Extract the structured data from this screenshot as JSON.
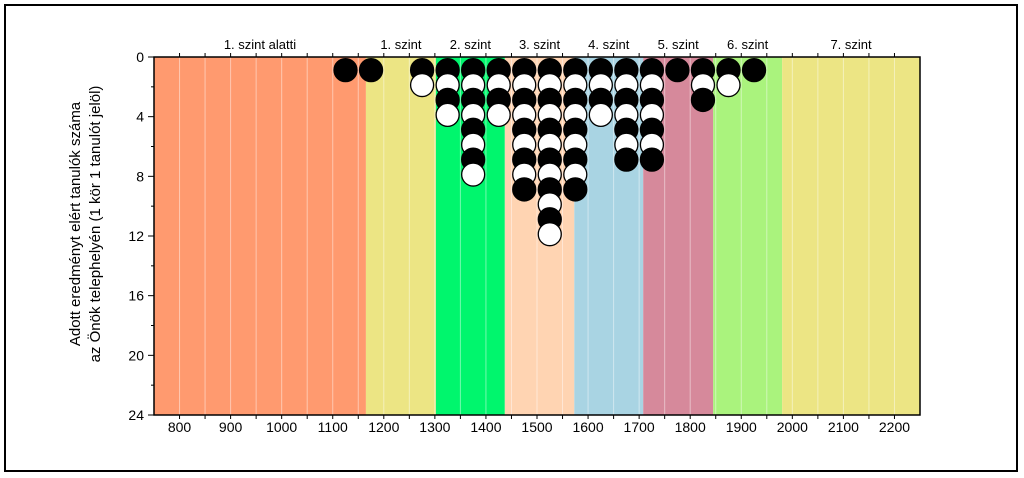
{
  "chart_data": {
    "type": "scatter",
    "ylabel": [
      "Adott eredményt elért tanulók száma",
      "az Önök telephelyén (1 kör 1 tanulót jelöl)"
    ],
    "x_ticks": [
      800,
      900,
      1000,
      1100,
      1200,
      1300,
      1400,
      1500,
      1600,
      1700,
      1800,
      1900,
      2000,
      2100,
      2200
    ],
    "y_ticks": [
      0,
      4,
      8,
      12,
      16,
      20,
      24
    ],
    "xlim": [
      750,
      2250
    ],
    "ylim": [
      0,
      24
    ],
    "y_inverted": true,
    "bands": [
      {
        "label": "1. szint alatti",
        "from": 750,
        "to": 1165,
        "color": "#ff9a6f"
      },
      {
        "label": "1. szint",
        "from": 1165,
        "to": 1302,
        "color": "#ece584"
      },
      {
        "label": "2. szint",
        "from": 1302,
        "to": 1437,
        "color": "#00f66d"
      },
      {
        "label": "3. szint",
        "from": 1437,
        "to": 1573,
        "color": "#ffd4b2"
      },
      {
        "label": "4. szint",
        "from": 1573,
        "to": 1708,
        "color": "#a9d4e3"
      },
      {
        "label": "5. szint",
        "from": 1708,
        "to": 1845,
        "color": "#d6899b"
      },
      {
        "label": "6. szint",
        "from": 1845,
        "to": 1980,
        "color": "#aaf37d"
      },
      {
        "label": "7. szint",
        "from": 1980,
        "to": 2250,
        "color": "#ece584"
      }
    ],
    "columns": [
      {
        "x": 1125,
        "markers": [
          "black"
        ]
      },
      {
        "x": 1175,
        "markers": [
          "black"
        ]
      },
      {
        "x": 1275,
        "markers": [
          "black",
          "white"
        ]
      },
      {
        "x": 1325,
        "markers": [
          "black",
          "white",
          "black",
          "white"
        ]
      },
      {
        "x": 1375,
        "markers": [
          "black",
          "white",
          "black",
          "white",
          "black",
          "white",
          "black",
          "white"
        ]
      },
      {
        "x": 1425,
        "markers": [
          "black",
          "white",
          "black",
          "white"
        ]
      },
      {
        "x": 1475,
        "markers": [
          "black",
          "white",
          "black",
          "white",
          "black",
          "white",
          "black",
          "white",
          "black"
        ]
      },
      {
        "x": 1525,
        "markers": [
          "black",
          "white",
          "black",
          "white",
          "black",
          "white",
          "black",
          "white",
          "black",
          "white",
          "black",
          "white"
        ]
      },
      {
        "x": 1575,
        "markers": [
          "black",
          "white",
          "black",
          "white",
          "black",
          "white",
          "black",
          "white",
          "black"
        ]
      },
      {
        "x": 1625,
        "markers": [
          "black",
          "white",
          "black",
          "white"
        ]
      },
      {
        "x": 1675,
        "markers": [
          "black",
          "white",
          "black",
          "white",
          "black",
          "white",
          "black"
        ]
      },
      {
        "x": 1725,
        "markers": [
          "black",
          "white",
          "black",
          "white",
          "black",
          "white",
          "black"
        ]
      },
      {
        "x": 1775,
        "markers": [
          "black"
        ]
      },
      {
        "x": 1825,
        "markers": [
          "black",
          "white",
          "black"
        ]
      },
      {
        "x": 1875,
        "markers": [
          "black",
          "white"
        ]
      },
      {
        "x": 1925,
        "markers": [
          "black"
        ]
      }
    ]
  }
}
